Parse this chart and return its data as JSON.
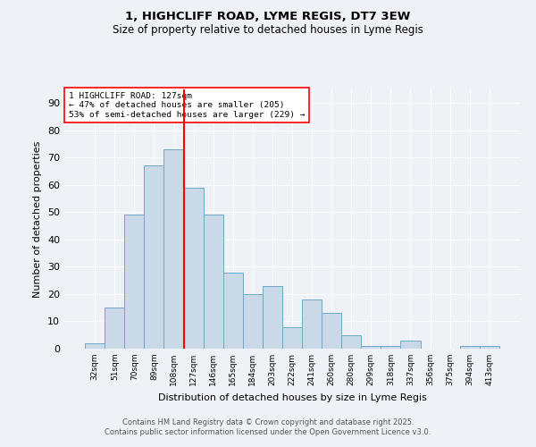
{
  "title1": "1, HIGHCLIFF ROAD, LYME REGIS, DT7 3EW",
  "title2": "Size of property relative to detached houses in Lyme Regis",
  "xlabel": "Distribution of detached houses by size in Lyme Regis",
  "ylabel": "Number of detached properties",
  "bar_labels": [
    "32sqm",
    "51sqm",
    "70sqm",
    "89sqm",
    "108sqm",
    "127sqm",
    "146sqm",
    "165sqm",
    "184sqm",
    "203sqm",
    "222sqm",
    "241sqm",
    "260sqm",
    "280sqm",
    "299sqm",
    "318sqm",
    "337sqm",
    "356sqm",
    "375sqm",
    "394sqm",
    "413sqm"
  ],
  "bar_values": [
    2,
    15,
    49,
    67,
    73,
    59,
    49,
    28,
    20,
    23,
    8,
    18,
    13,
    5,
    1,
    1,
    3,
    0,
    0,
    1,
    1
  ],
  "bar_color": "#c9d9e8",
  "bar_edge_color": "#6fa8c8",
  "vline_color": "red",
  "ylim": [
    0,
    95
  ],
  "yticks": [
    0,
    10,
    20,
    30,
    40,
    50,
    60,
    70,
    80,
    90
  ],
  "annotation_title": "1 HIGHCLIFF ROAD: 127sqm",
  "annotation_line1": "← 47% of detached houses are smaller (205)",
  "annotation_line2": "53% of semi-detached houses are larger (229) →",
  "annotation_box_color": "white",
  "annotation_box_edge": "red",
  "footer1": "Contains HM Land Registry data © Crown copyright and database right 2025.",
  "footer2": "Contains public sector information licensed under the Open Government Licence v3.0.",
  "background_color": "#eef2f7",
  "grid_color": "white"
}
